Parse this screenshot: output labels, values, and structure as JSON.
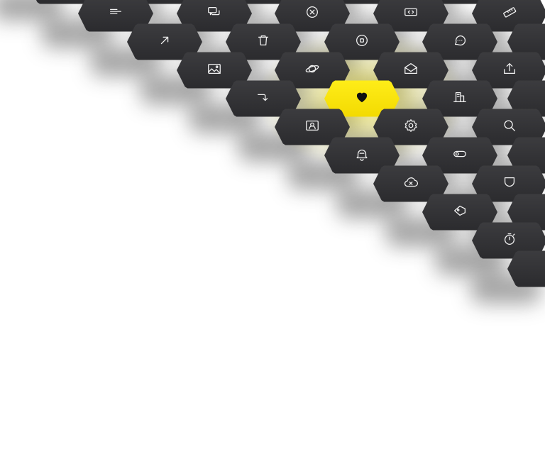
{
  "colors": {
    "key": "#2f2f32",
    "key_highlight": "#f5e000",
    "icon": "#f2f2f2",
    "background": "#ffffff"
  },
  "keys": [
    {
      "icon": "menu-lines"
    },
    {
      "icon": "chat-bubbles"
    },
    {
      "icon": "close-circle"
    },
    {
      "icon": "code-box"
    },
    {
      "icon": "ruler"
    },
    {
      "icon": "arrow-up-right"
    },
    {
      "icon": "trash"
    },
    {
      "icon": "record-circle"
    },
    {
      "icon": "comment-dots"
    },
    {
      "icon": "blank"
    },
    {
      "icon": "image"
    },
    {
      "icon": "planet"
    },
    {
      "icon": "mail-open"
    },
    {
      "icon": "upload"
    },
    {
      "icon": "turn-down-right"
    },
    {
      "icon": "heart",
      "highlight": true
    },
    {
      "icon": "city"
    },
    {
      "icon": "blank"
    },
    {
      "icon": "contact-card"
    },
    {
      "icon": "settings"
    },
    {
      "icon": "search"
    },
    {
      "icon": "bell"
    },
    {
      "icon": "toggle"
    },
    {
      "icon": "blank"
    },
    {
      "icon": "cloud-off"
    },
    {
      "icon": "shield"
    },
    {
      "icon": "tag"
    },
    {
      "icon": "blank"
    },
    {
      "icon": "stopwatch"
    },
    {
      "icon": "blank"
    }
  ]
}
